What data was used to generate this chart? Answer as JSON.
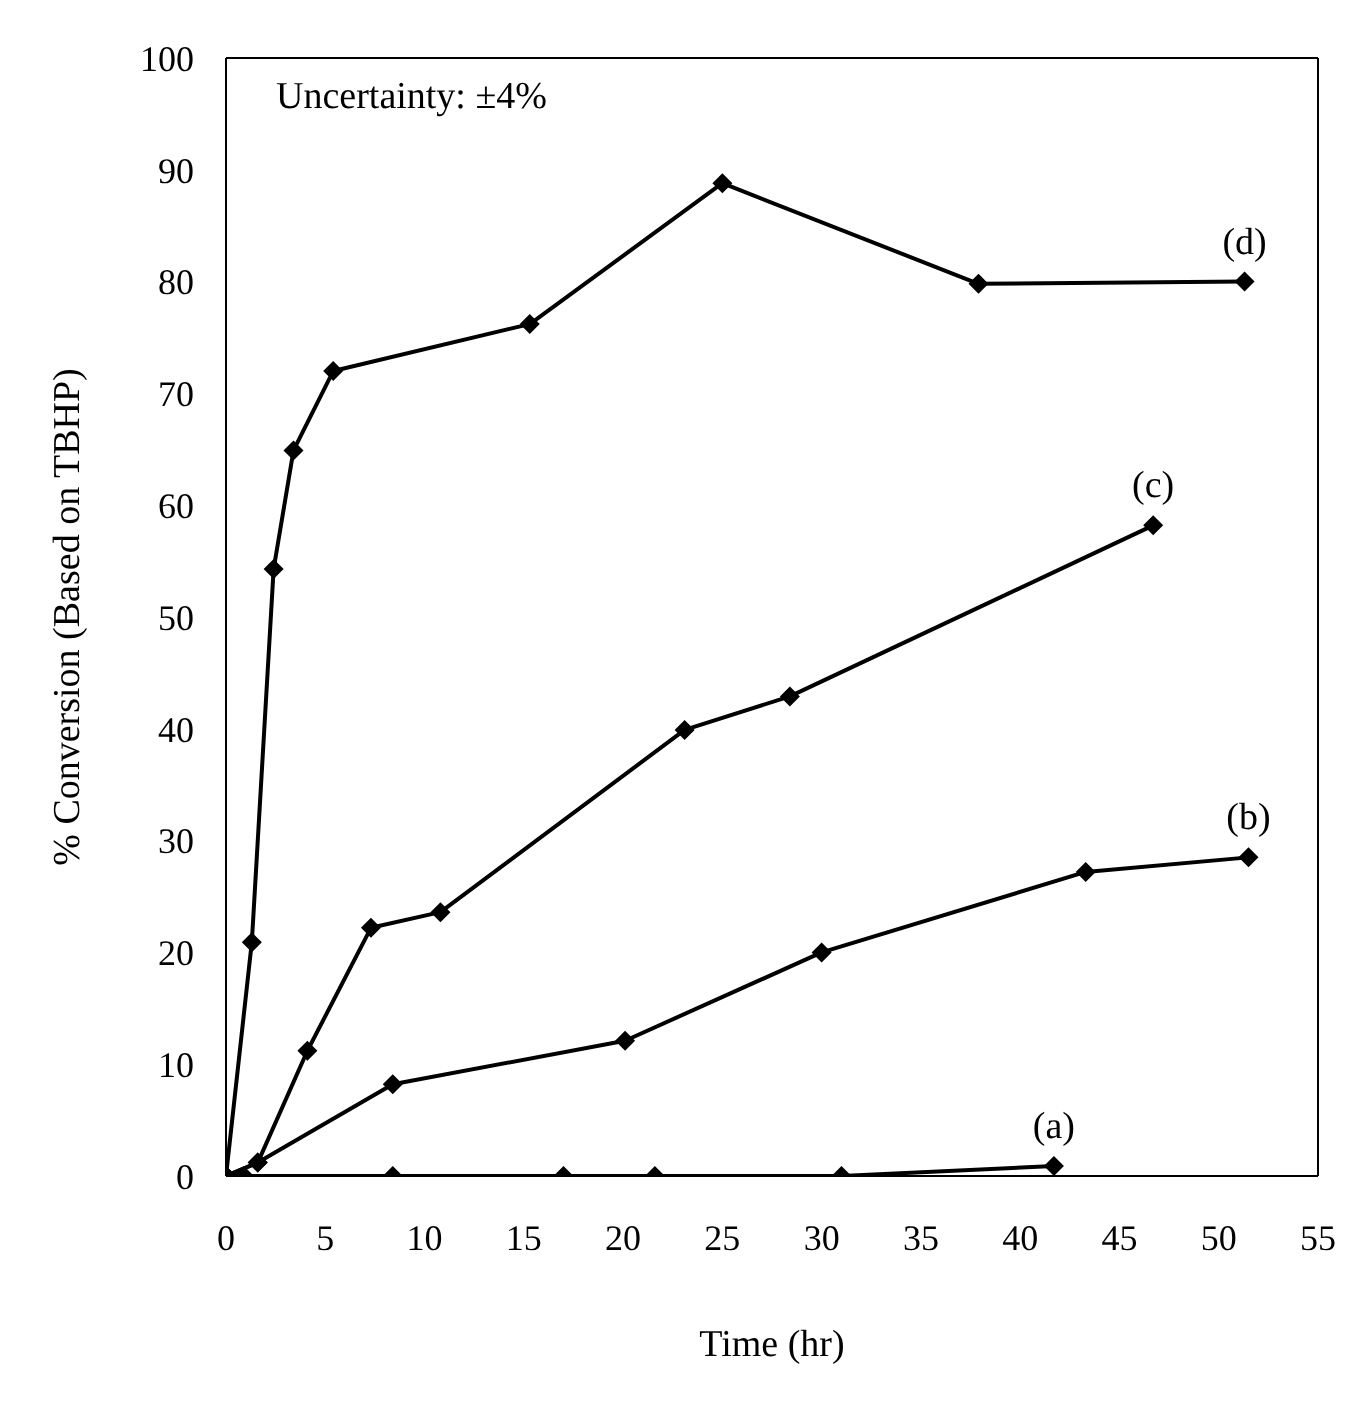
{
  "chart_data": {
    "type": "line",
    "xlabel": "Time (hr)",
    "ylabel": "% Conversion (Based on TBHP)",
    "xlim": [
      0,
      55
    ],
    "xticks": [
      0,
      5,
      10,
      15,
      20,
      25,
      30,
      35,
      40,
      45,
      50,
      55
    ],
    "ylim": [
      0,
      100
    ],
    "yticks": [
      0,
      10,
      20,
      30,
      40,
      50,
      60,
      70,
      80,
      90,
      100
    ],
    "legend": false,
    "marker": "diamond",
    "line_style": "solid",
    "series": [
      {
        "color": "#000000",
        "x": [
          0,
          0.9,
          8.4,
          17,
          21.6,
          31,
          41.7
        ],
        "values": [
          0,
          0,
          0,
          0,
          0,
          0,
          0.9
        ]
      },
      {
        "color": "#000000",
        "x": [
          0,
          1.6,
          8.4,
          20.1,
          30,
          43.3,
          51.5
        ],
        "values": [
          0,
          1.2,
          8.2,
          12.1,
          20,
          27.2,
          28.5
        ]
      },
      {
        "color": "#000000",
        "x": [
          0,
          1.6,
          4.1,
          7.3,
          10.8,
          23.1,
          28.4,
          46.7
        ],
        "values": [
          0,
          1.2,
          11.2,
          22.2,
          23.6,
          39.9,
          42.9,
          58.2
        ]
      },
      {
        "color": "#000000",
        "x": [
          0,
          1.3,
          2.4,
          3.4,
          5.4,
          15.3,
          25,
          37.9,
          51.3
        ],
        "values": [
          0,
          20.9,
          54.3,
          64.9,
          72,
          76.2,
          88.8,
          79.8,
          80
        ]
      }
    ],
    "annotations": [
      "Uncertainty: ±4%",
      {
        "text": "(a)",
        "x": 41.7,
        "y": 0.9
      },
      {
        "text": "(b)",
        "x": 51.5,
        "y": 28.5
      },
      {
        "text": "(c)",
        "x": 46.7,
        "y": 58.2
      },
      {
        "text": "(d)",
        "x": 51.3,
        "y": 80
      }
    ]
  }
}
